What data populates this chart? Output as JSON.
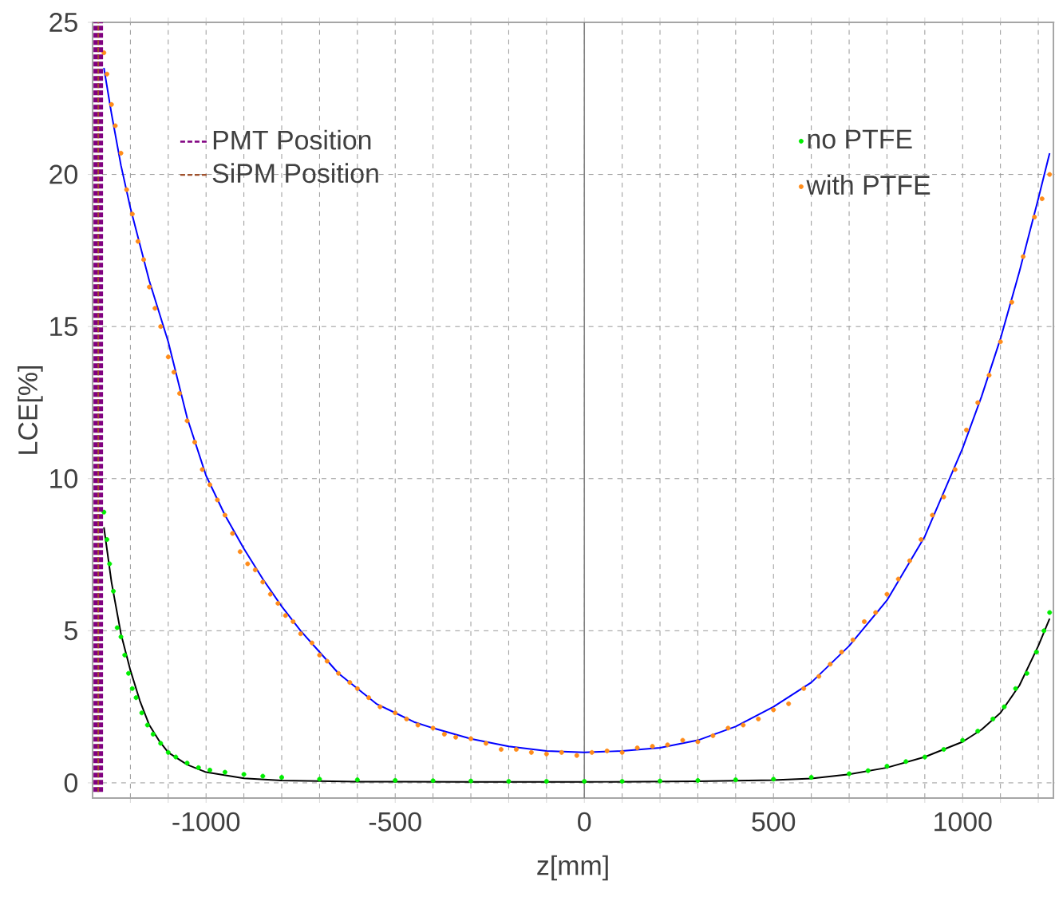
{
  "chart_data": {
    "type": "scatter",
    "xlabel": "z[mm]",
    "ylabel": "LCE[%]",
    "xlim": [
      -1300,
      1240
    ],
    "ylim": [
      -0.5,
      25
    ],
    "xticks": [
      {
        "value": -1200,
        "label": null
      },
      {
        "value": -1100,
        "label": null
      },
      -1000,
      {
        "value": -900,
        "label": null
      },
      {
        "value": -800,
        "label": null
      },
      {
        "value": -700,
        "label": null
      },
      {
        "value": -600,
        "label": null
      },
      -500,
      {
        "value": -400,
        "label": null
      },
      {
        "value": -300,
        "label": null
      },
      {
        "value": -200,
        "label": null
      },
      {
        "value": -100,
        "label": null
      },
      0,
      {
        "value": 100,
        "label": null
      },
      {
        "value": 200,
        "label": null
      },
      {
        "value": 300,
        "label": null
      },
      {
        "value": 400,
        "label": null
      },
      500,
      {
        "value": 600,
        "label": null
      },
      {
        "value": 700,
        "label": null
      },
      {
        "value": 800,
        "label": null
      },
      {
        "value": 900,
        "label": null
      },
      1000,
      {
        "value": 1100,
        "label": null
      },
      {
        "value": 1200,
        "label": null
      }
    ],
    "yticks": [
      0,
      5,
      10,
      15,
      20,
      25
    ],
    "grid": true,
    "legend": "top right",
    "ref_lines": [
      {
        "axis": "x",
        "value": 0,
        "color": "#808080"
      }
    ],
    "series": [
      {
        "type": "line",
        "name": "PMT Position",
        "marker": "none",
        "line_style": "dashed",
        "color": "#800080",
        "x": [
          -1285,
          -1285
        ],
        "values": [
          -0.3,
          25
        ]
      },
      {
        "type": "line",
        "name": "SiPM Position",
        "marker": "none",
        "line_style": "dashed",
        "color": "#a0522d",
        "x": [
          -1285,
          -1285
        ],
        "values": [
          -0.3,
          25
        ]
      },
      {
        "type": "line",
        "marker": "none",
        "color": "#000000",
        "x": [
          -1270,
          -1250,
          -1225,
          -1200,
          -1175,
          -1150,
          -1125,
          -1100,
          -1050,
          -1000,
          -900,
          -800,
          -600,
          -300,
          0,
          300,
          500,
          600,
          700,
          800,
          900,
          1000,
          1050,
          1100,
          1150,
          1200,
          1230
        ],
        "values": [
          8.4,
          6.6,
          4.9,
          3.7,
          2.7,
          1.9,
          1.4,
          1.0,
          0.6,
          0.35,
          0.15,
          0.08,
          0.04,
          0.03,
          0.03,
          0.05,
          0.09,
          0.14,
          0.28,
          0.5,
          0.85,
          1.35,
          1.75,
          2.3,
          3.2,
          4.5,
          5.4
        ]
      },
      {
        "type": "line",
        "marker": "none",
        "color": "#0000ff",
        "x": [
          -1270,
          -1250,
          -1225,
          -1200,
          -1150,
          -1100,
          -1050,
          -1000,
          -950,
          -900,
          -850,
          -800,
          -750,
          -700,
          -650,
          -600,
          -550,
          -500,
          -450,
          -400,
          -300,
          -200,
          -100,
          0,
          100,
          200,
          300,
          400,
          500,
          600,
          700,
          800,
          900,
          1000,
          1050,
          1100,
          1150,
          1200,
          1230
        ],
        "values": [
          23.5,
          22.0,
          20.3,
          18.9,
          16.5,
          14.5,
          12.0,
          10.1,
          8.8,
          7.7,
          6.7,
          5.8,
          5.0,
          4.3,
          3.6,
          3.1,
          2.6,
          2.3,
          2.0,
          1.8,
          1.45,
          1.2,
          1.05,
          1.0,
          1.05,
          1.15,
          1.4,
          1.85,
          2.5,
          3.3,
          4.5,
          6.0,
          8.1,
          11.0,
          12.7,
          14.6,
          16.8,
          19.2,
          20.7
        ]
      },
      {
        "name": "no PTFE",
        "marker": "circle",
        "color": "#00ee00",
        "x": [
          -1270,
          -1262,
          -1255,
          -1245,
          -1235,
          -1225,
          -1215,
          -1205,
          -1195,
          -1185,
          -1170,
          -1155,
          -1140,
          -1120,
          -1100,
          -1080,
          -1050,
          -1020,
          -990,
          -950,
          -900,
          -850,
          -800,
          -700,
          -600,
          -500,
          -400,
          -300,
          -200,
          -100,
          0,
          100,
          200,
          300,
          400,
          500,
          600,
          700,
          750,
          800,
          850,
          900,
          950,
          1000,
          1040,
          1080,
          1110,
          1140,
          1170,
          1195,
          1215,
          1230
        ],
        "values": [
          8.9,
          8.0,
          7.2,
          6.3,
          5.1,
          4.8,
          4.2,
          3.6,
          3.1,
          2.8,
          2.3,
          1.9,
          1.6,
          1.3,
          1.0,
          0.85,
          0.65,
          0.5,
          0.42,
          0.35,
          0.28,
          0.22,
          0.18,
          0.12,
          0.1,
          0.08,
          0.07,
          0.06,
          0.05,
          0.05,
          0.05,
          0.05,
          0.06,
          0.08,
          0.1,
          0.12,
          0.18,
          0.3,
          0.4,
          0.55,
          0.7,
          0.85,
          1.1,
          1.4,
          1.7,
          2.1,
          2.5,
          3.1,
          3.6,
          4.3,
          5.0,
          5.6
        ]
      },
      {
        "name": "with PTFE",
        "marker": "circle",
        "color": "#ff8c1a",
        "x": [
          -1270,
          -1262,
          -1250,
          -1240,
          -1225,
          -1210,
          -1195,
          -1180,
          -1165,
          -1150,
          -1135,
          -1120,
          -1100,
          -1085,
          -1070,
          -1050,
          -1030,
          -1010,
          -990,
          -970,
          -950,
          -930,
          -910,
          -890,
          -870,
          -850,
          -830,
          -810,
          -790,
          -770,
          -750,
          -720,
          -700,
          -680,
          -650,
          -620,
          -600,
          -570,
          -540,
          -500,
          -470,
          -440,
          -400,
          -370,
          -340,
          -300,
          -260,
          -220,
          -180,
          -140,
          -100,
          -60,
          -20,
          20,
          60,
          100,
          140,
          180,
          220,
          260,
          300,
          340,
          380,
          420,
          460,
          500,
          540,
          580,
          620,
          650,
          680,
          710,
          740,
          770,
          800,
          830,
          860,
          890,
          920,
          950,
          980,
          1010,
          1040,
          1070,
          1100,
          1130,
          1160,
          1190,
          1210,
          1230
        ],
        "values": [
          24.0,
          23.3,
          22.3,
          21.6,
          20.7,
          19.5,
          18.7,
          17.8,
          17.2,
          16.3,
          15.6,
          15.0,
          14.0,
          13.5,
          12.8,
          11.9,
          11.2,
          10.3,
          9.8,
          9.3,
          8.8,
          8.2,
          7.6,
          7.2,
          7.0,
          6.6,
          6.2,
          5.9,
          5.5,
          5.3,
          4.9,
          4.6,
          4.2,
          4.0,
          3.6,
          3.3,
          3.1,
          2.8,
          2.5,
          2.3,
          2.1,
          1.9,
          1.8,
          1.6,
          1.5,
          1.45,
          1.3,
          1.1,
          1.1,
          1.0,
          0.95,
          1.0,
          0.9,
          1.0,
          1.05,
          1.0,
          1.15,
          1.2,
          1.25,
          1.4,
          1.35,
          1.55,
          1.8,
          1.9,
          2.1,
          2.4,
          2.6,
          3.1,
          3.5,
          3.9,
          4.3,
          4.7,
          5.3,
          5.6,
          6.2,
          6.7,
          7.3,
          8.0,
          8.8,
          9.4,
          10.3,
          11.6,
          12.5,
          13.4,
          14.5,
          15.8,
          17.3,
          18.6,
          19.2,
          20.0
        ]
      }
    ]
  }
}
